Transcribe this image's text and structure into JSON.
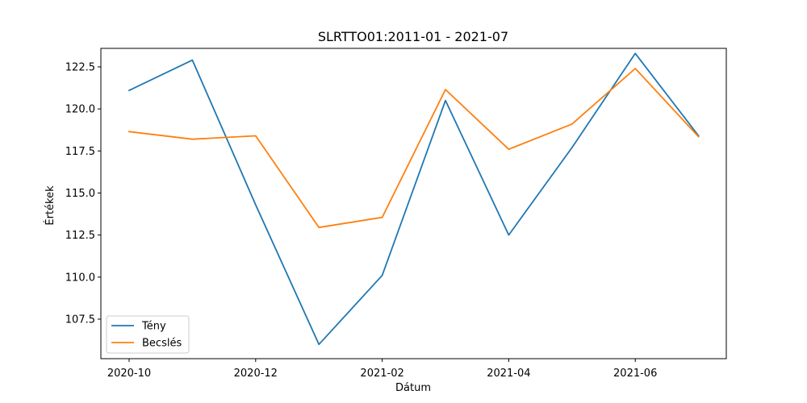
{
  "chart_data": {
    "type": "line",
    "title": "SLRTTO01:2011-01 - 2021-07",
    "xlabel": "Dátum",
    "ylabel": "Értékek",
    "x": [
      "2020-10",
      "2020-11",
      "2020-12",
      "2021-01",
      "2021-02",
      "2021-03",
      "2021-04",
      "2021-05",
      "2021-06",
      "2021-07"
    ],
    "x_tick_labels": [
      "2020-10",
      "2020-12",
      "2021-02",
      "2021-04",
      "2021-06"
    ],
    "y_ticks": [
      107.5,
      110.0,
      112.5,
      115.0,
      117.5,
      120.0,
      122.5
    ],
    "y_tick_labels": [
      "107.5",
      "110.0",
      "112.5",
      "115.0",
      "117.5",
      "120.0",
      "122.5"
    ],
    "ylim": [
      105.15,
      123.6
    ],
    "grid": false,
    "legend_position": "lower left",
    "series": [
      {
        "name": "Tény",
        "color": "#1f77b4",
        "values": [
          121.1,
          122.9,
          114.3,
          106.0,
          110.1,
          120.5,
          112.5,
          117.7,
          123.3,
          118.4
        ]
      },
      {
        "name": "Becslés",
        "color": "#ff7f0e",
        "values": [
          118.65,
          118.2,
          118.4,
          112.95,
          113.55,
          121.15,
          117.6,
          119.1,
          122.4,
          118.35
        ]
      }
    ]
  }
}
